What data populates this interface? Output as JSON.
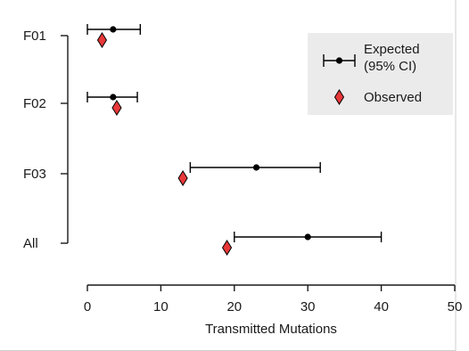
{
  "chart_data": {
    "type": "scatter",
    "categories": [
      "F01",
      "F02",
      "F03",
      "All"
    ],
    "xlabel": "Transmitted Mutations",
    "ylabel": "",
    "xlim": [
      0,
      50
    ],
    "xticks": [
      0,
      10,
      20,
      30,
      40,
      50
    ],
    "grid": false,
    "legend_position": "top-right",
    "series": [
      {
        "name": "Expected\n(95% CI)",
        "marker": "circle",
        "color": "#000000",
        "values": [
          3.5,
          3.5,
          23,
          30
        ],
        "ci_low": [
          0,
          0,
          14,
          20
        ],
        "ci_high": [
          7.2,
          6.8,
          31.7,
          40
        ]
      },
      {
        "name": "Observed",
        "marker": "diamond",
        "color": "#e8383a",
        "values": [
          2,
          4,
          13,
          19
        ]
      }
    ]
  }
}
